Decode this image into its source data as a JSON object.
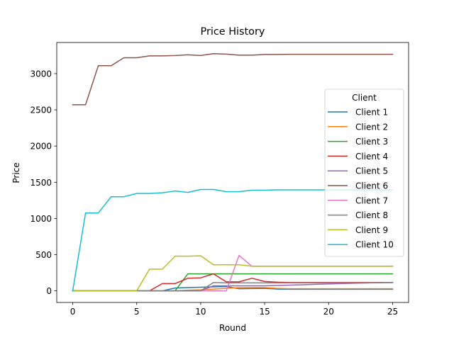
{
  "chart_data": {
    "type": "line",
    "title": "Price History",
    "xlabel": "Round",
    "ylabel": "Price",
    "xlim": [
      -1.25,
      26.25
    ],
    "ylim": [
      -160,
      3430
    ],
    "x_ticks": [
      0,
      5,
      10,
      15,
      20,
      25
    ],
    "y_ticks": [
      0,
      500,
      1000,
      1500,
      2000,
      2500,
      3000
    ],
    "grid": false,
    "legend": {
      "title": "Client",
      "position": "center-right"
    },
    "x": [
      0,
      1,
      2,
      3,
      4,
      5,
      6,
      7,
      8,
      9,
      10,
      11,
      12,
      13,
      14,
      15,
      16,
      17,
      18,
      19,
      20,
      21,
      22,
      23,
      24,
      25
    ],
    "series": [
      {
        "name": "Client 1",
        "color": "#1f77b4",
        "values": [
          0,
          0,
          0,
          0,
          0,
          0,
          0,
          0,
          40,
          45,
          50,
          55,
          60,
          30,
          32,
          35,
          25,
          22,
          22,
          22,
          22,
          22,
          22,
          22,
          22,
          22
        ]
      },
      {
        "name": "Client 2",
        "color": "#ff7f0e",
        "values": [
          0,
          0,
          0,
          0,
          0,
          0,
          0,
          0,
          0,
          10,
          15,
          25,
          35,
          45,
          45,
          45,
          35,
          30,
          30,
          30,
          30,
          30,
          30,
          30,
          30,
          30
        ]
      },
      {
        "name": "Client 3",
        "color": "#2ca02c",
        "values": [
          0,
          0,
          0,
          0,
          0,
          0,
          0,
          0,
          0,
          235,
          235,
          235,
          235,
          235,
          235,
          235,
          235,
          235,
          235,
          235,
          235,
          235,
          235,
          235,
          235,
          235
        ]
      },
      {
        "name": "Client 4",
        "color": "#d62728",
        "values": [
          0,
          0,
          0,
          0,
          0,
          0,
          0,
          100,
          100,
          175,
          180,
          235,
          125,
          125,
          175,
          130,
          120,
          115,
          115,
          115,
          115,
          115,
          115,
          115,
          115,
          115
        ]
      },
      {
        "name": "Client 5",
        "color": "#9467bd",
        "values": [
          0,
          0,
          0,
          0,
          0,
          0,
          0,
          0,
          0,
          0,
          0,
          70,
          70,
          70,
          70,
          70,
          75,
          80,
          85,
          90,
          95,
          100,
          105,
          110,
          112,
          115
        ]
      },
      {
        "name": "Client 6",
        "color": "#8c564b",
        "values": [
          2570,
          2570,
          3110,
          3110,
          3220,
          3220,
          3245,
          3245,
          3250,
          3260,
          3250,
          3275,
          3270,
          3255,
          3255,
          3265,
          3265,
          3268,
          3268,
          3268,
          3268,
          3268,
          3268,
          3268,
          3268,
          3268
        ]
      },
      {
        "name": "Client 7",
        "color": "#e377c2",
        "values": [
          0,
          0,
          0,
          0,
          0,
          0,
          0,
          0,
          0,
          0,
          0,
          0,
          0,
          490,
          340,
          340,
          340,
          340,
          340,
          340,
          340,
          340,
          340,
          340,
          340,
          340
        ]
      },
      {
        "name": "Client 8",
        "color": "#7f7f7f",
        "values": [
          0,
          0,
          0,
          0,
          0,
          0,
          0,
          0,
          0,
          0,
          0,
          115,
          110,
          110,
          110,
          110,
          110,
          110,
          110,
          110,
          110,
          110,
          110,
          110,
          115,
          115
        ]
      },
      {
        "name": "Client 9",
        "color": "#bcbd22",
        "values": [
          0,
          0,
          0,
          0,
          0,
          0,
          300,
          300,
          480,
          480,
          485,
          360,
          360,
          360,
          340,
          340,
          340,
          340,
          340,
          340,
          340,
          340,
          340,
          340,
          340,
          340
        ]
      },
      {
        "name": "Client 10",
        "color": "#17becf",
        "values": [
          0,
          1075,
          1075,
          1300,
          1300,
          1345,
          1345,
          1355,
          1380,
          1360,
          1400,
          1400,
          1370,
          1370,
          1390,
          1390,
          1395,
          1395,
          1395,
          1395,
          1395,
          1395,
          1395,
          1395,
          1395,
          1395
        ]
      }
    ]
  }
}
